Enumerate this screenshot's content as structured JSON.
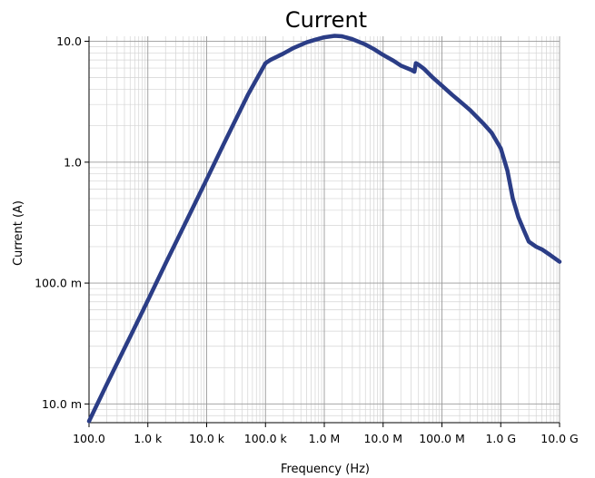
{
  "chart_data": {
    "type": "line",
    "title": "Current",
    "xlabel": "Frequency (Hz)",
    "ylabel": "Current (A)",
    "x_scale": "log",
    "y_scale": "log",
    "xlim": [
      100,
      10000000000
    ],
    "ylim": [
      0.007,
      11
    ],
    "grid": true,
    "legend": "none",
    "x_ticks": [
      {
        "value": 100,
        "label": "100.0"
      },
      {
        "value": 1000,
        "label": "1.0 k"
      },
      {
        "value": 10000,
        "label": "10.0 k"
      },
      {
        "value": 100000,
        "label": "100.0 k"
      },
      {
        "value": 1000000,
        "label": "1.0 M"
      },
      {
        "value": 10000000,
        "label": "10.0 M"
      },
      {
        "value": 100000000,
        "label": "100.0 M"
      },
      {
        "value": 1000000000,
        "label": "1.0 G"
      },
      {
        "value": 10000000000,
        "label": "10.0 G"
      }
    ],
    "y_ticks": [
      {
        "value": 10,
        "label": "10.0"
      },
      {
        "value": 1,
        "label": "1.0"
      },
      {
        "value": 0.1,
        "label": "100.0 m"
      },
      {
        "value": 0.01,
        "label": "10.0 m"
      }
    ],
    "series": [
      {
        "color": "#2b3d86",
        "x": [
          100,
          200,
          500,
          1000,
          2000,
          5000,
          10000,
          20000,
          50000,
          100000,
          120000,
          200000,
          300000,
          500000,
          700000,
          1000000,
          1500000,
          2000000,
          3000000,
          5000000,
          7000000,
          10000000,
          15000000,
          20000000,
          30000000,
          34000000,
          36000000,
          40000000,
          50000000,
          70000000,
          100000000,
          150000000,
          200000000,
          300000000,
          500000000,
          700000000,
          1000000000,
          1300000000,
          1600000000,
          2000000000,
          2500000000,
          3000000000,
          4000000000,
          5000000000,
          7000000000,
          10000000000
        ],
        "y": [
          0.0072,
          0.0145,
          0.036,
          0.072,
          0.145,
          0.36,
          0.72,
          1.45,
          3.6,
          6.6,
          7.0,
          7.9,
          8.8,
          9.8,
          10.3,
          10.8,
          11.1,
          11.0,
          10.4,
          9.4,
          8.6,
          7.7,
          6.9,
          6.3,
          5.8,
          5.6,
          6.6,
          6.4,
          5.9,
          5.0,
          4.3,
          3.6,
          3.2,
          2.7,
          2.1,
          1.75,
          1.3,
          0.85,
          0.5,
          0.35,
          0.27,
          0.22,
          0.2,
          0.19,
          0.17,
          0.15
        ]
      }
    ]
  }
}
